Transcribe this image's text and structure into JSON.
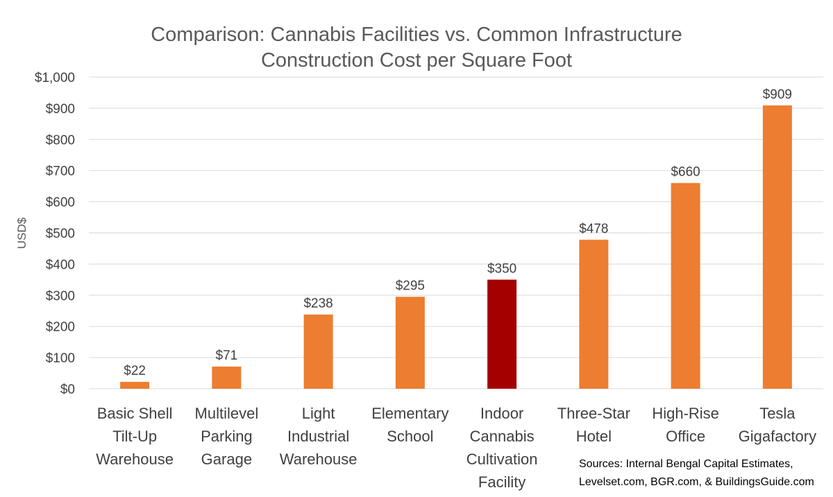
{
  "chart_data": {
    "type": "bar",
    "title": [
      "Comparison: Cannabis Facilities vs. Common Infrastructure",
      "Construction Cost per Square Foot"
    ],
    "ylabel": "USD$",
    "ylim": [
      0,
      1000
    ],
    "yticks": [
      0,
      100,
      200,
      300,
      400,
      500,
      600,
      700,
      800,
      900,
      1000
    ],
    "ytick_labels": [
      "$0",
      "$100",
      "$200",
      "$300",
      "$400",
      "$500",
      "$600",
      "$700",
      "$800",
      "$900",
      "$1,000"
    ],
    "grid": true,
    "categories": [
      [
        "Basic Shell",
        "Tilt-Up",
        "Warehouse"
      ],
      [
        "Multilevel",
        "Parking",
        "Garage"
      ],
      [
        "Light",
        "Industrial",
        "Warehouse"
      ],
      [
        "Elementary",
        "School"
      ],
      [
        "Indoor",
        "Cannabis",
        "Cultivation",
        "Facility"
      ],
      [
        "Three-Star",
        "Hotel"
      ],
      [
        "High-Rise",
        "Office"
      ],
      [
        "Tesla",
        "Gigafactory"
      ]
    ],
    "values": [
      22,
      71,
      238,
      295,
      350,
      478,
      660,
      909
    ],
    "data_labels": [
      "$22",
      "$71",
      "$238",
      "$295",
      "$350",
      "$478",
      "$660",
      "$909"
    ],
    "colors": [
      "#ED7D31",
      "#ED7D31",
      "#ED7D31",
      "#ED7D31",
      "#A50000",
      "#ED7D31",
      "#ED7D31",
      "#ED7D31"
    ],
    "annotation": [
      "Sources: Internal Bengal Capital Estimates,",
      "Levelset.com, BGR.com, & BuildingsGuide.com"
    ]
  }
}
